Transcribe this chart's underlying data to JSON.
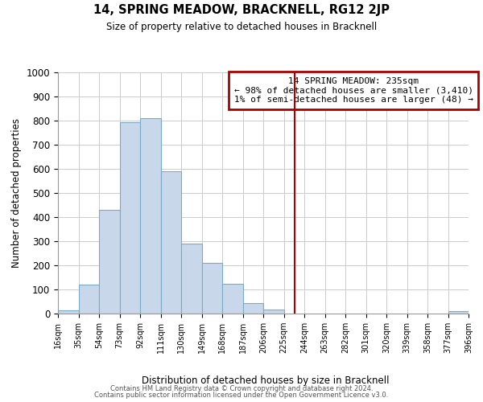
{
  "title": "14, SPRING MEADOW, BRACKNELL, RG12 2JP",
  "subtitle": "Size of property relative to detached houses in Bracknell",
  "xlabel": "Distribution of detached houses by size in Bracknell",
  "ylabel": "Number of detached properties",
  "bar_color": "#c8d8ea",
  "bar_edge_color": "#7aaac8",
  "background_color": "#ffffff",
  "grid_color": "#cccccc",
  "annotation_box_color": "#aa0000",
  "vline_color": "#aa0000",
  "vline_x": 235,
  "annotation_title": "14 SPRING MEADOW: 235sqm",
  "annotation_line1": "← 98% of detached houses are smaller (3,410)",
  "annotation_line2": "1% of semi-detached houses are larger (48) →",
  "bin_edges": [
    16,
    35,
    54,
    73,
    92,
    111,
    130,
    149,
    168,
    187,
    206,
    225,
    244,
    263,
    282,
    301,
    320,
    339,
    358,
    377,
    396
  ],
  "bin_labels": [
    "16sqm",
    "35sqm",
    "54sqm",
    "73sqm",
    "92sqm",
    "111sqm",
    "130sqm",
    "149sqm",
    "168sqm",
    "187sqm",
    "206sqm",
    "225sqm",
    "244sqm",
    "263sqm",
    "282sqm",
    "301sqm",
    "320sqm",
    "339sqm",
    "358sqm",
    "377sqm",
    "396sqm"
  ],
  "counts": [
    15,
    120,
    430,
    795,
    810,
    590,
    290,
    210,
    125,
    42,
    18,
    0,
    0,
    0,
    0,
    0,
    0,
    0,
    0,
    10
  ],
  "ylim": [
    0,
    1000
  ],
  "yticks": [
    0,
    100,
    200,
    300,
    400,
    500,
    600,
    700,
    800,
    900,
    1000
  ],
  "footer1": "Contains HM Land Registry data © Crown copyright and database right 2024.",
  "footer2": "Contains public sector information licensed under the Open Government Licence v3.0."
}
